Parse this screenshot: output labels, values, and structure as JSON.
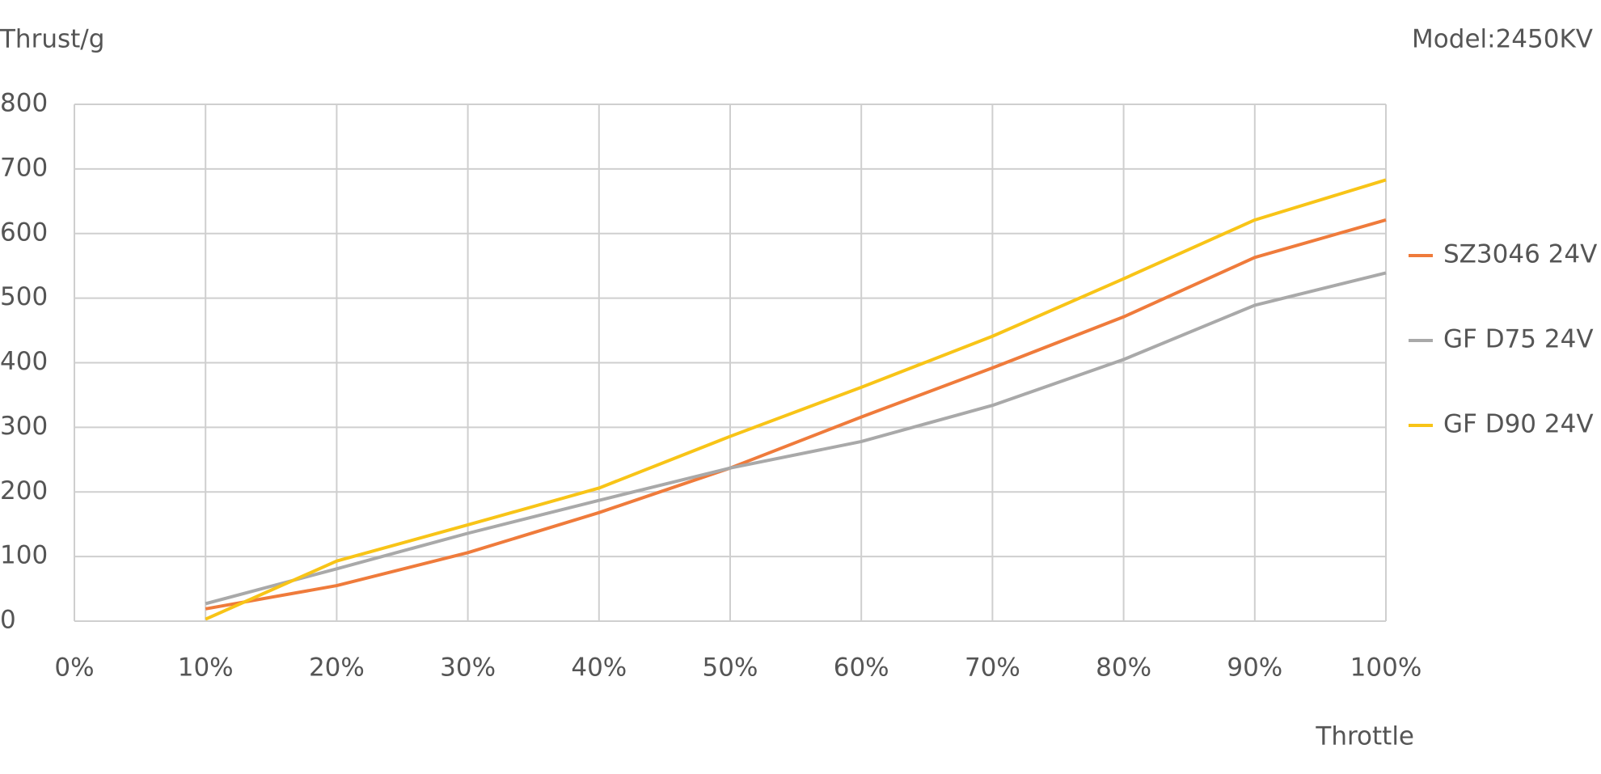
{
  "chart_data": {
    "type": "line",
    "y_label": "Thrust/g",
    "x_label": "Throttle",
    "annotation": "Model:2450KV",
    "x": [
      10,
      20,
      30,
      40,
      50,
      60,
      70,
      80,
      90,
      100
    ],
    "series": [
      {
        "name": "SZ3046 24V",
        "color": "#ef7b3b",
        "values": [
          19,
          55,
          106,
          168,
          237,
          316,
          392,
          471,
          563,
          621
        ]
      },
      {
        "name": "GF D75 24V",
        "color": "#a9a9a9",
        "values": [
          27,
          81,
          136,
          187,
          237,
          278,
          334,
          405,
          489,
          539
        ]
      },
      {
        "name": "GF D90 24V",
        "color": "#f8c417",
        "values": [
          3,
          93,
          149,
          206,
          286,
          362,
          441,
          530,
          621,
          683
        ]
      }
    ],
    "xlim": [
      0,
      100
    ],
    "xticks": [
      {
        "value": 0,
        "label": "0%"
      },
      {
        "value": 10,
        "label": "10%"
      },
      {
        "value": 20,
        "label": "20%"
      },
      {
        "value": 30,
        "label": "30%"
      },
      {
        "value": 40,
        "label": "40%"
      },
      {
        "value": 50,
        "label": "50%"
      },
      {
        "value": 60,
        "label": "60%"
      },
      {
        "value": 70,
        "label": "70%"
      },
      {
        "value": 80,
        "label": "80%"
      },
      {
        "value": 90,
        "label": "90%"
      },
      {
        "value": 100,
        "label": "100%"
      }
    ],
    "ylim": [
      0,
      800
    ],
    "yticks": [
      0,
      100,
      200,
      300,
      400,
      500,
      600,
      700,
      800
    ],
    "grid": true,
    "legend": "right"
  }
}
